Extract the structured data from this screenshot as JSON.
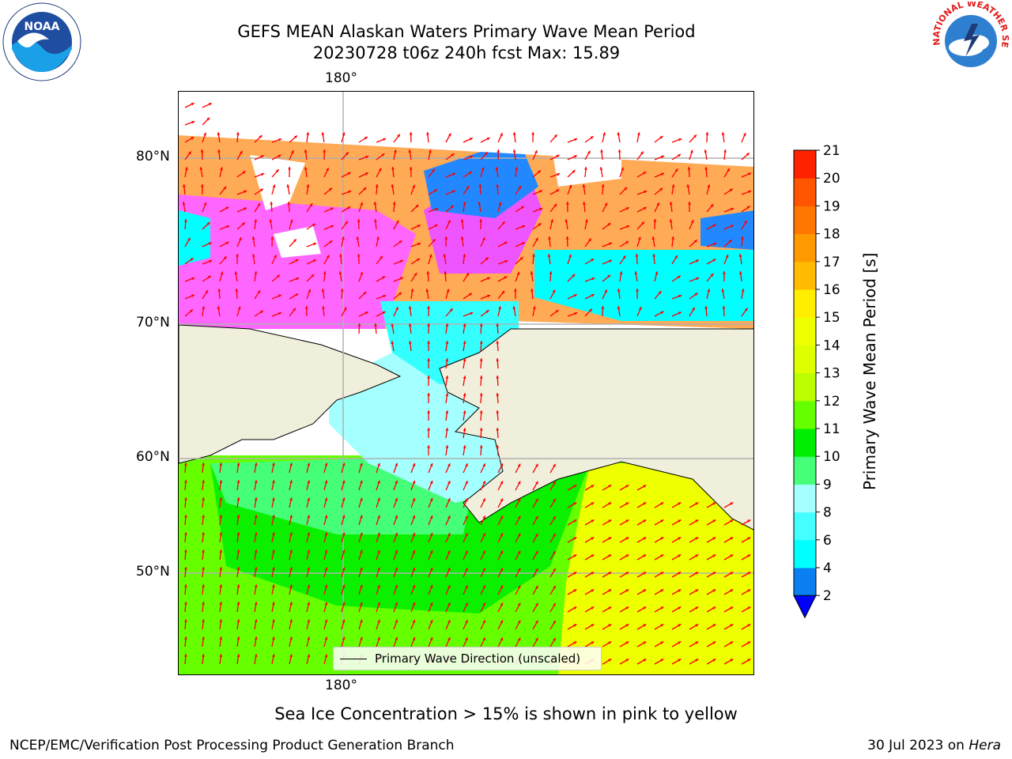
{
  "title": {
    "line1": "GEFS MEAN Alaskan Waters Primary Wave Mean Period",
    "line2": "20230728 t06z 240h fcst   Max: 15.89"
  },
  "map": {
    "lon_label_top": "180°",
    "lon_label_bottom": "180°",
    "lat_labels": [
      "80°N",
      "70°N",
      "60°N",
      "50°N"
    ],
    "legend_text": "Primary Wave Direction (unscaled)",
    "land_color": "#efefdc",
    "arrow_color": "#ff0000"
  },
  "colorbar": {
    "label": "Primary Wave Mean Period [s]",
    "ticks": [
      "2",
      "4",
      "6",
      "8",
      "9",
      "10",
      "11",
      "12",
      "13",
      "14",
      "15",
      "16",
      "17",
      "18",
      "19",
      "20",
      "21"
    ],
    "colors": [
      "#0a7ff2",
      "#00ffff",
      "#44ffff",
      "#a4ffff",
      "#44ff77",
      "#00ee00",
      "#66ff00",
      "#bbff00",
      "#ddff00",
      "#eeff00",
      "#ffee00",
      "#ffbb00",
      "#ff9900",
      "#ff7700",
      "#ff5500",
      "#ff2200"
    ],
    "under_color": "#0000ff"
  },
  "subtitle": "Sea Ice Concentration > 15% is shown in pink to yellow",
  "footer": {
    "left": "NCEP/EMC/Verification Post Processing Product Generation Branch",
    "right_date": "30 Jul 2023 on ",
    "right_machine": "Hera"
  },
  "logos": {
    "noaa_text": "NOAA",
    "nws_text": "NATIONAL WEATHER SERVICE"
  }
}
